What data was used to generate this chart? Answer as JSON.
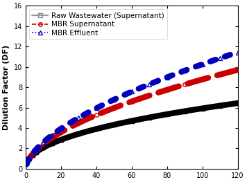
{
  "title": "",
  "xlabel": "",
  "ylabel": "Dilution Factor (DF)",
  "xlim": [
    0,
    120
  ],
  "ylim": [
    0,
    16
  ],
  "yticks": [
    0,
    2,
    4,
    6,
    8,
    10,
    12,
    14,
    16
  ],
  "xticks": [
    0,
    20,
    40,
    60,
    80,
    100,
    120
  ],
  "series": [
    {
      "label": "Raw Wastewater (Supernatant)",
      "color": "#000000",
      "linestyle": "-",
      "marker": "s",
      "n": 0.455,
      "x0": 2.0,
      "y0": 1.0,
      "y_end": 6.7
    },
    {
      "label": "MBR Supernatant",
      "color": "#cc0000",
      "linestyle": "--",
      "marker": "o",
      "n": 0.555,
      "x0": 2.0,
      "y0": 1.0,
      "y_end": 11.1
    },
    {
      "label": "MBR Effluent",
      "color": "#0000bb",
      "linestyle": ":",
      "marker": "^",
      "n": 0.595,
      "x0": 2.0,
      "y0": 1.0,
      "y_end": 13.2
    }
  ],
  "legend_colors": [
    "#888888",
    "#cc0000",
    "#0000bb"
  ],
  "background_color": "#ffffff",
  "legend_fontsize": 7.5,
  "axis_fontsize": 8,
  "tick_fontsize": 7,
  "linewidth": 6.0,
  "marker_size": 4,
  "marker_lw": 1.0
}
